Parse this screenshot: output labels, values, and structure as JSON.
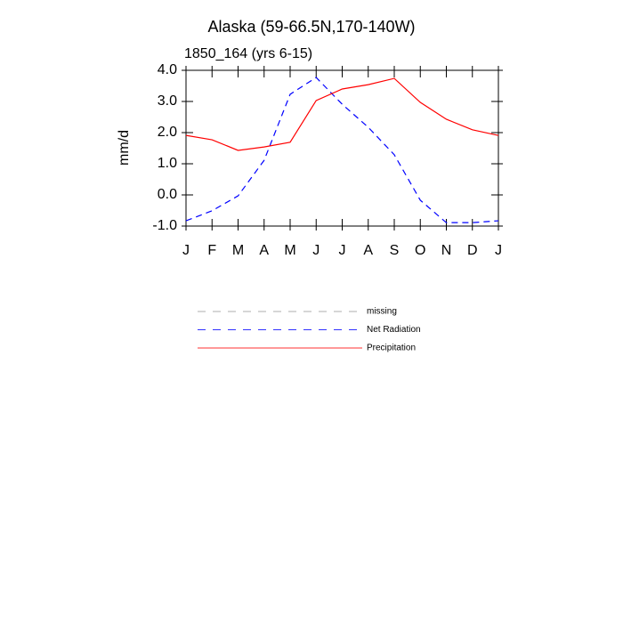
{
  "chart_data": {
    "type": "line",
    "title": "Alaska (59-66.5N,170-140W)",
    "subtitle": "1850_164 (yrs 6-15)",
    "y_label": "mm/d",
    "categories": [
      "J",
      "F",
      "M",
      "A",
      "M",
      "J",
      "J",
      "A",
      "S",
      "O",
      "N",
      "D",
      "J"
    ],
    "ylim": [
      -1.0,
      4.0
    ],
    "yticks": [
      {
        "value": -1.0,
        "label": "-1.0"
      },
      {
        "value": 0.0,
        "label": "0.0"
      },
      {
        "value": 1.0,
        "label": "1.0"
      },
      {
        "value": 2.0,
        "label": "2.0"
      },
      {
        "value": 3.0,
        "label": "3.0"
      },
      {
        "value": 4.0,
        "label": "4.0"
      }
    ],
    "series": [
      {
        "name": "missing",
        "color": "#999999",
        "style": "dashed",
        "values": [
          null,
          null,
          null,
          null,
          null,
          null,
          null,
          null,
          null,
          null,
          null,
          null,
          null
        ]
      },
      {
        "name": "Net Radiation",
        "color": "#0000ff",
        "style": "dashed",
        "values": [
          -0.83,
          -0.51,
          -0.03,
          1.11,
          3.23,
          3.77,
          2.91,
          2.17,
          1.29,
          -0.17,
          -0.89,
          -0.89,
          -0.83
        ]
      },
      {
        "name": "Precipitation",
        "color": "#ff0000",
        "style": "solid",
        "values": [
          1.91,
          1.77,
          1.43,
          1.54,
          1.69,
          3.03,
          3.4,
          3.54,
          3.74,
          2.97,
          2.43,
          2.09,
          1.91
        ]
      }
    ]
  }
}
